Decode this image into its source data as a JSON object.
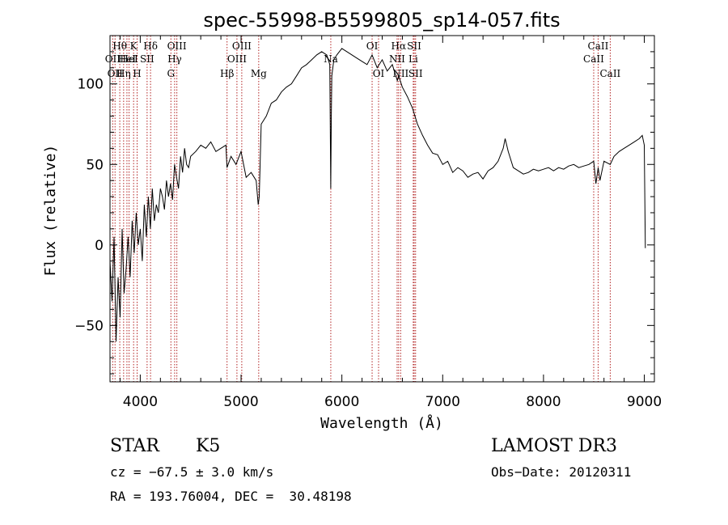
{
  "chart_data": {
    "type": "line",
    "title": "spec-55998-B5599805_sp14-057.fits",
    "xlabel": "Wavelength (Å)",
    "ylabel": "Flux (relative)",
    "xlim": [
      3700,
      9100
    ],
    "ylim": [
      -85,
      130
    ],
    "xticks": [
      4000,
      5000,
      6000,
      7000,
      8000,
      9000
    ],
    "yticks": [
      -50,
      0,
      50,
      100
    ],
    "grid": false,
    "series": [
      {
        "x": [
          3700,
          3720,
          3740,
          3760,
          3780,
          3800,
          3820,
          3840,
          3860,
          3880,
          3900,
          3920,
          3940,
          3960,
          3980,
          4000,
          4020,
          4040,
          4060,
          4080,
          4100,
          4120,
          4140,
          4160,
          4180,
          4200,
          4220,
          4240,
          4260,
          4280,
          4300,
          4320,
          4340,
          4360,
          4380,
          4400,
          4420,
          4440,
          4460,
          4480,
          4500,
          4550,
          4600,
          4650,
          4700,
          4750,
          4800,
          4850,
          4860,
          4900,
          4950,
          5000,
          5050,
          5100,
          5150,
          5170,
          5180,
          5200,
          5250,
          5300,
          5350,
          5400,
          5450,
          5500,
          5550,
          5600,
          5650,
          5700,
          5750,
          5800,
          5850,
          5880,
          5890,
          5895,
          5900,
          5920,
          5950,
          6000,
          6050,
          6100,
          6150,
          6200,
          6250,
          6300,
          6350,
          6400,
          6450,
          6500,
          6550,
          6563,
          6600,
          6650,
          6700,
          6750,
          6800,
          6850,
          6900,
          6950,
          7000,
          7050,
          7100,
          7150,
          7200,
          7250,
          7300,
          7350,
          7400,
          7450,
          7500,
          7550,
          7600,
          7620,
          7650,
          7700,
          7750,
          7800,
          7850,
          7900,
          7950,
          8000,
          8050,
          8100,
          8150,
          8200,
          8250,
          8300,
          8350,
          8400,
          8450,
          8498,
          8520,
          8542,
          8560,
          8600,
          8662,
          8700,
          8750,
          8800,
          8850,
          8900,
          8950,
          8980,
          9000,
          9010
        ],
        "values": [
          -10,
          -35,
          5,
          -60,
          -20,
          -45,
          10,
          -30,
          -15,
          5,
          -20,
          15,
          -5,
          20,
          0,
          10,
          -10,
          25,
          5,
          30,
          10,
          35,
          15,
          25,
          20,
          35,
          30,
          22,
          40,
          30,
          38,
          28,
          50,
          42,
          35,
          55,
          45,
          60,
          50,
          48,
          55,
          58,
          62,
          60,
          64,
          58,
          60,
          62,
          48,
          55,
          50,
          58,
          42,
          45,
          40,
          25,
          30,
          75,
          80,
          88,
          90,
          95,
          98,
          100,
          105,
          110,
          112,
          115,
          118,
          120,
          118,
          112,
          35,
          80,
          105,
          115,
          118,
          122,
          120,
          118,
          116,
          114,
          112,
          118,
          110,
          115,
          108,
          112,
          102,
          105,
          98,
          92,
          85,
          75,
          68,
          62,
          57,
          56,
          50,
          52,
          45,
          48,
          46,
          42,
          44,
          45,
          41,
          46,
          48,
          52,
          60,
          66,
          58,
          48,
          46,
          44,
          45,
          47,
          46,
          47,
          48,
          46,
          48,
          47,
          49,
          50,
          48,
          49,
          50,
          52,
          38,
          48,
          40,
          52,
          50,
          55,
          58,
          60,
          62,
          64,
          66,
          68,
          62,
          -2
        ]
      }
    ],
    "lines": [
      {
        "x": 3727,
        "label": "OII",
        "row": 2
      },
      {
        "x": 3750,
        "label": "OII",
        "row": 3
      },
      {
        "x": 3797,
        "label": "Hθ",
        "row": 1
      },
      {
        "x": 3835,
        "label": "Hη",
        "row": 3
      },
      {
        "x": 3868,
        "label": "HeI",
        "row": 2
      },
      {
        "x": 3889,
        "label": "HeI",
        "row": 2
      },
      {
        "x": 3934,
        "label": "K",
        "row": 1
      },
      {
        "x": 3969,
        "label": "H",
        "row": 3
      },
      {
        "x": 4068,
        "label": "SII",
        "row": 2
      },
      {
        "x": 4102,
        "label": "Hδ",
        "row": 1
      },
      {
        "x": 4304,
        "label": "G",
        "row": 3
      },
      {
        "x": 4341,
        "label": "Hγ",
        "row": 2
      },
      {
        "x": 4363,
        "label": "OIII",
        "row": 1
      },
      {
        "x": 4861,
        "label": "Hβ",
        "row": 3
      },
      {
        "x": 4959,
        "label": "OIII",
        "row": 2
      },
      {
        "x": 5007,
        "label": "OIII",
        "row": 1
      },
      {
        "x": 5175,
        "label": "Mg",
        "row": 3
      },
      {
        "x": 5890,
        "label": "Na",
        "row": 2
      },
      {
        "x": 6300,
        "label": "OI",
        "row": 1
      },
      {
        "x": 6364,
        "label": "OI",
        "row": 3
      },
      {
        "x": 6548,
        "label": "NII",
        "row": 2
      },
      {
        "x": 6563,
        "label": "Hα",
        "row": 1
      },
      {
        "x": 6583,
        "label": "NII",
        "row": 3
      },
      {
        "x": 6708,
        "label": "Li",
        "row": 2
      },
      {
        "x": 6717,
        "label": "SII",
        "row": 1
      },
      {
        "x": 6731,
        "label": "SII",
        "row": 3
      },
      {
        "x": 8498,
        "label": "CaII",
        "row": 2
      },
      {
        "x": 8542,
        "label": "CaII",
        "row": 1
      },
      {
        "x": 8662,
        "label": "CaII",
        "row": 3
      }
    ]
  },
  "info": {
    "class": "STAR",
    "subclass": "K5",
    "survey": "LAMOST DR3",
    "cz": "cz = −67.5 ± 3.0 km/s",
    "obs_date": "Obs−Date: 20120311",
    "radec": "RA = 193.76004, DEC =  30.48198"
  },
  "colors": {
    "line_marker": "#b22222",
    "spectrum": "#000000"
  }
}
